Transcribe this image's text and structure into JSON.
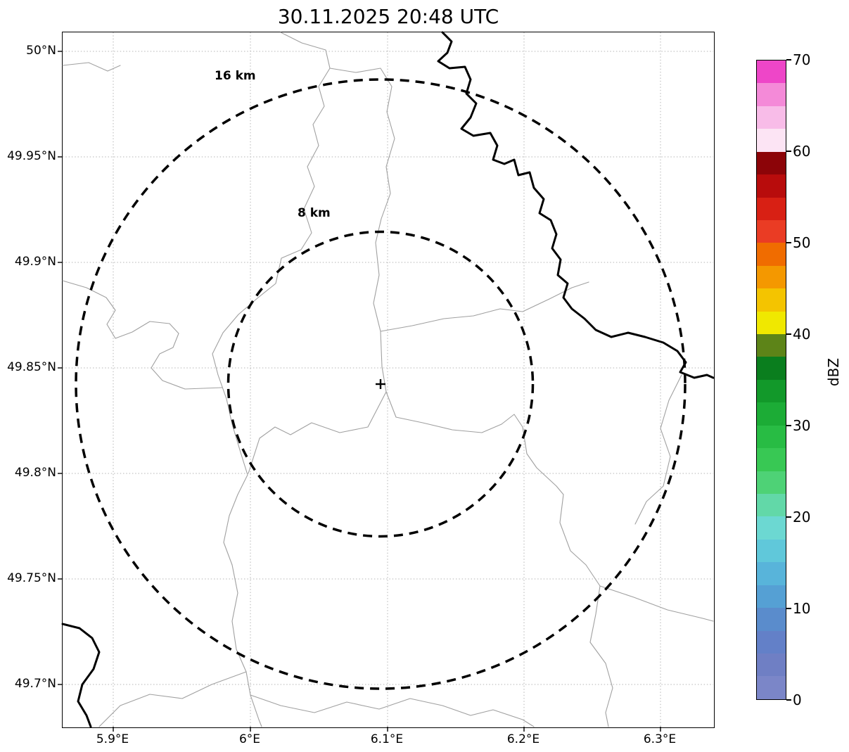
{
  "title": "30.11.2025 20:48 UTC",
  "map": {
    "x_ticks": [
      "5.9°E",
      "6°E",
      "6.1°E",
      "6.2°E",
      "6.3°E"
    ],
    "y_ticks": [
      "50°N",
      "49.95°N",
      "49.9°N",
      "49.85°N",
      "49.8°N",
      "49.75°N",
      "49.7°N"
    ],
    "range_rings": [
      {
        "label": "16 km"
      },
      {
        "label": "8 km"
      }
    ],
    "center_marker": "+"
  },
  "colorbar": {
    "label": "dBZ",
    "min": 0,
    "max": 70,
    "ticks": [
      "0",
      "10",
      "20",
      "30",
      "40",
      "50",
      "60",
      "70"
    ],
    "segment_colors_bottom_to_top": [
      "#7b86c8",
      "#6f7fc4",
      "#6380c8",
      "#5a8ccc",
      "#55a0d4",
      "#58b4da",
      "#60c8da",
      "#6cd8d2",
      "#62d8a8",
      "#4ed276",
      "#38c854",
      "#28bc44",
      "#1cac36",
      "#12992a",
      "#0a7e1e",
      "#5d8418",
      "#f0e800",
      "#f4c400",
      "#f49800",
      "#f06c00",
      "#ea3c24",
      "#d82014",
      "#b80c0c",
      "#8c0408",
      "#fce4f4",
      "#f8bce8",
      "#f48ad8",
      "#ee46c8"
    ]
  }
}
